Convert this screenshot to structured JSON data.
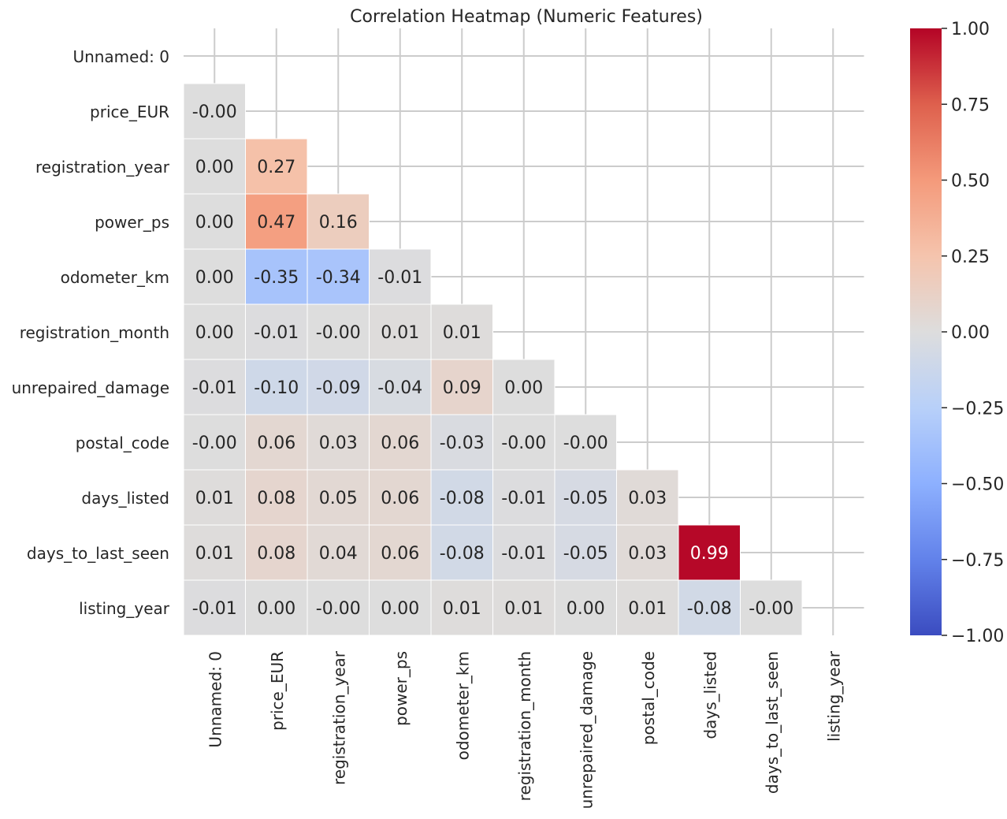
{
  "chart_data": {
    "type": "heatmap",
    "title": "Correlation Heatmap (Numeric Features)",
    "variables": [
      "Unnamed: 0",
      "price_EUR",
      "registration_year",
      "power_ps",
      "odometer_km",
      "registration_month",
      "unrepaired_damage",
      "postal_code",
      "days_listed",
      "days_to_last_seen",
      "listing_year"
    ],
    "mask": "upper-triangle",
    "values": [
      [],
      [
        -0.0
      ],
      [
        0.0,
        0.27
      ],
      [
        0.0,
        0.47,
        0.16
      ],
      [
        0.0,
        -0.35,
        -0.34,
        -0.01
      ],
      [
        0.0,
        -0.01,
        -0.0,
        0.01,
        0.01
      ],
      [
        -0.01,
        -0.1,
        -0.09,
        -0.04,
        0.09,
        0.0
      ],
      [
        -0.0,
        0.06,
        0.03,
        0.06,
        -0.03,
        -0.0,
        -0.0
      ],
      [
        0.01,
        0.08,
        0.05,
        0.06,
        -0.08,
        -0.01,
        -0.05,
        0.03
      ],
      [
        0.01,
        0.08,
        0.04,
        0.06,
        -0.08,
        -0.01,
        -0.05,
        0.03,
        0.99
      ],
      [
        -0.01,
        0.0,
        -0.0,
        0.0,
        0.01,
        0.01,
        0.0,
        0.01,
        -0.08,
        -0.0
      ]
    ],
    "cell_labels": [
      [],
      [
        "-0.00"
      ],
      [
        "0.00",
        "0.27"
      ],
      [
        "0.00",
        "0.47",
        "0.16"
      ],
      [
        "0.00",
        "-0.35",
        "-0.34",
        "-0.01"
      ],
      [
        "0.00",
        "-0.01",
        "-0.00",
        "0.01",
        "0.01"
      ],
      [
        "-0.01",
        "-0.10",
        "-0.09",
        "-0.04",
        "0.09",
        "0.00"
      ],
      [
        "-0.00",
        "0.06",
        "0.03",
        "0.06",
        "-0.03",
        "-0.00",
        "-0.00"
      ],
      [
        "0.01",
        "0.08",
        "0.05",
        "0.06",
        "-0.08",
        "-0.01",
        "-0.05",
        "0.03"
      ],
      [
        "0.01",
        "0.08",
        "0.04",
        "0.06",
        "-0.08",
        "-0.01",
        "-0.05",
        "0.03",
        "0.99"
      ],
      [
        "-0.01",
        "0.00",
        "-0.00",
        "0.00",
        "0.01",
        "0.01",
        "0.00",
        "0.01",
        "-0.08",
        "-0.00"
      ]
    ],
    "colormap": "coolwarm",
    "colors": {
      "low": "#3b4cc0",
      "mid": "#dddddd",
      "high": "#b40426"
    },
    "vmin": -1.0,
    "vmax": 1.0,
    "colorbar_ticks": [
      1.0,
      0.75,
      0.5,
      0.25,
      0.0,
      -0.25,
      -0.5,
      -0.75,
      -1.0
    ],
    "colorbar_tick_labels": [
      "1.00",
      "0.75",
      "0.50",
      "0.25",
      "0.00",
      "−0.25",
      "−0.50",
      "−0.75",
      "−1.00"
    ],
    "grid": true
  }
}
